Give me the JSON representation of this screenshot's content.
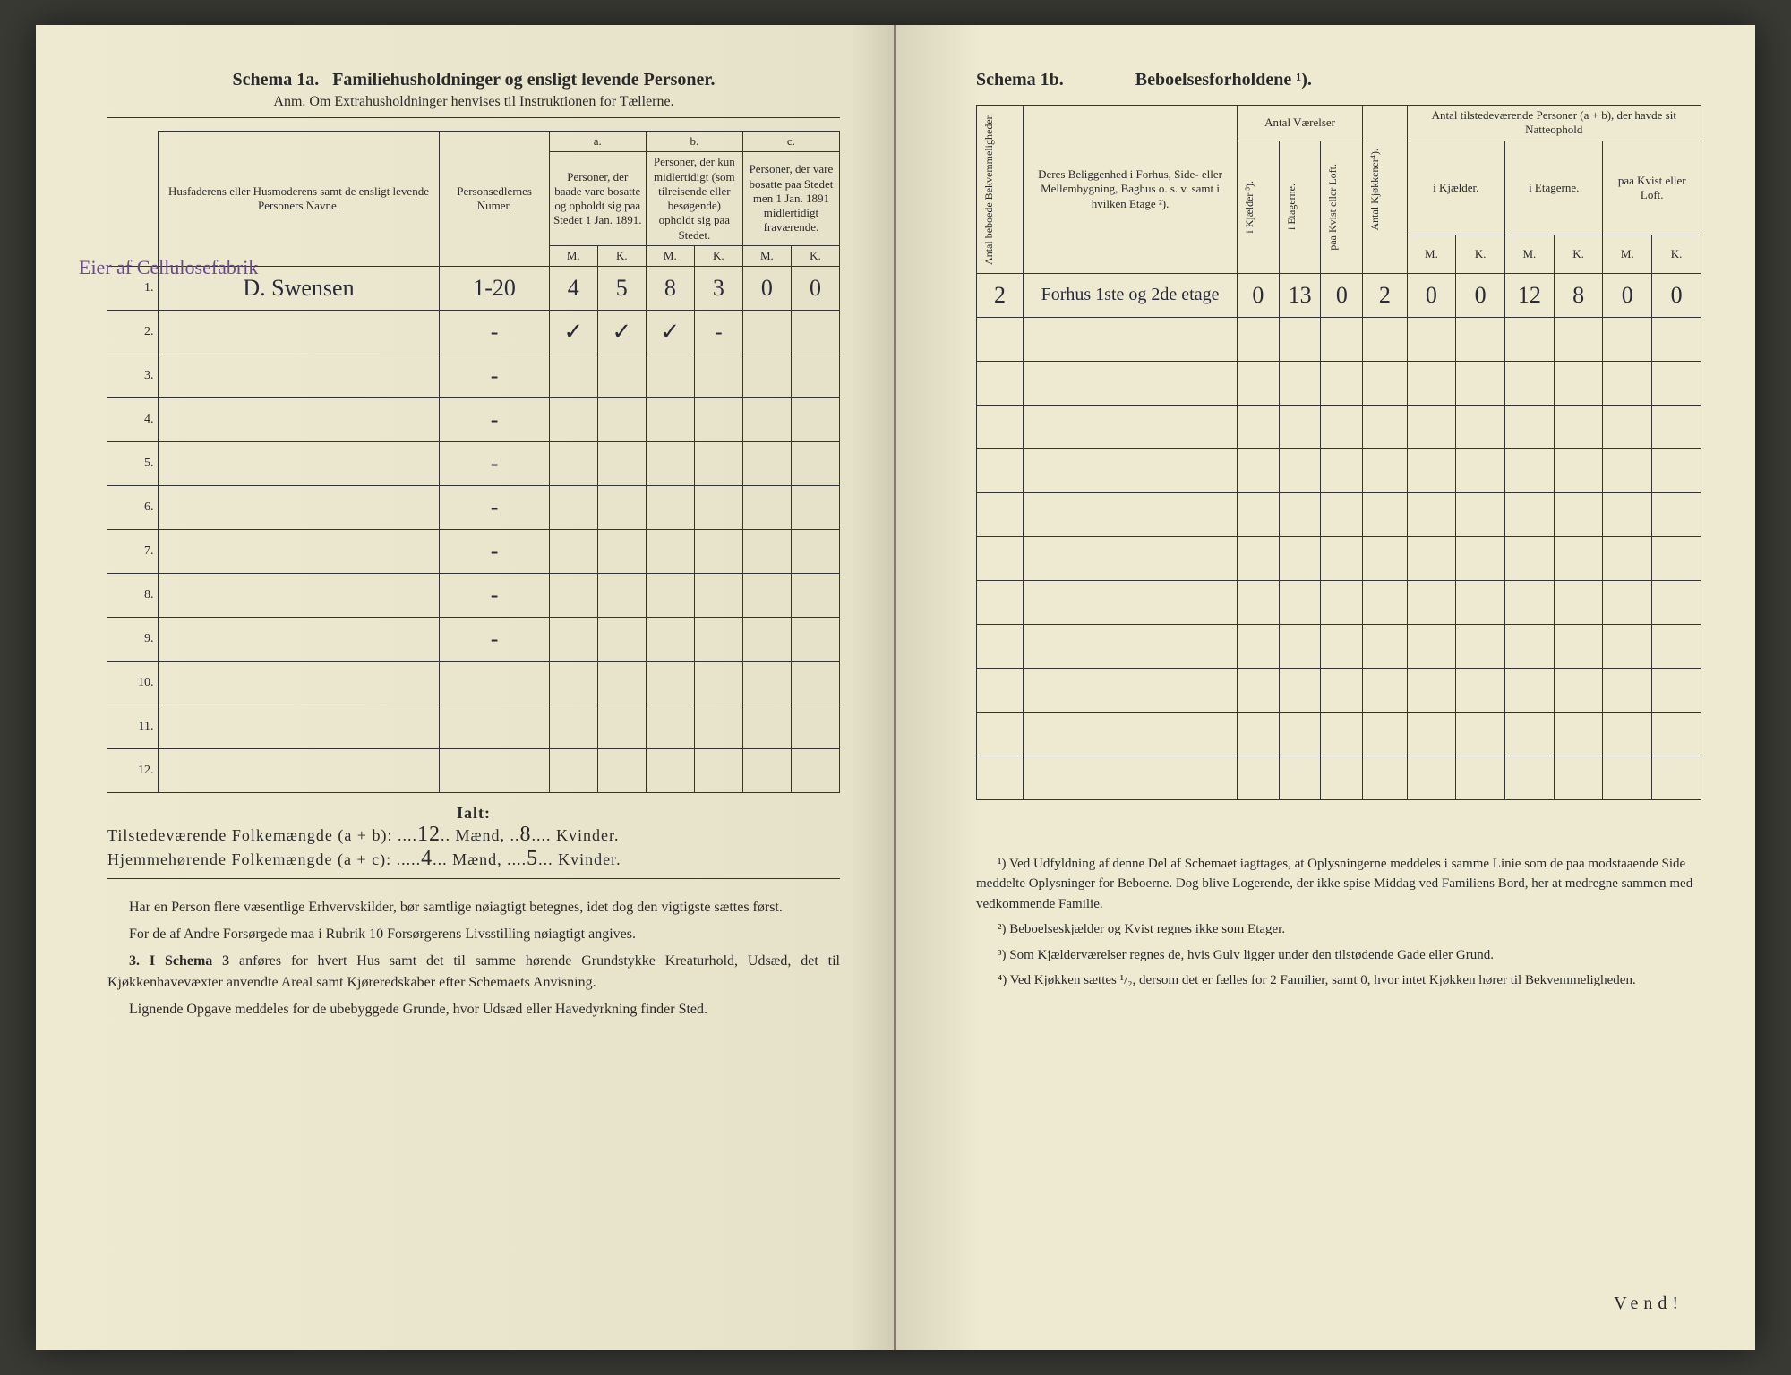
{
  "left": {
    "schema_label": "Schema 1a.",
    "schema_title": "Familiehusholdninger og ensligt levende Personer.",
    "anm": "Anm. Om Extrahusholdninger henvises til Instruktionen for Tællerne.",
    "header_names": "Husfaderens eller Husmoderens samt de ensligt levende Personers Navne.",
    "header_numer": "Personsedlernes Numer.",
    "col_a_label": "a.",
    "col_a_text": "Personer, der baade vare bosatte og opholdt sig paa Stedet 1 Jan. 1891.",
    "col_b_label": "b.",
    "col_b_text": "Personer, der kun midlertidigt (som tilreisende eller besøgende) opholdt sig paa Stedet.",
    "col_c_label": "c.",
    "col_c_text": "Personer, der vare bosatte paa Stedet men 1 Jan. 1891 midlertidigt fraværende.",
    "M": "M.",
    "K": "K.",
    "margin_note": "Eier af Cellulosefabrik",
    "rows": [
      {
        "n": "1.",
        "name": "D. Swensen",
        "num": "1-20",
        "aM": "4",
        "aK": "5",
        "bM": "8",
        "bK": "3",
        "cM": "0",
        "cK": "0"
      },
      {
        "n": "2.",
        "name": "",
        "num": "-",
        "aM": "✓",
        "aK": "✓",
        "bM": "✓",
        "bK": "-",
        "cM": "",
        "cK": ""
      },
      {
        "n": "3.",
        "name": "",
        "num": "-",
        "aM": "",
        "aK": "",
        "bM": "",
        "bK": "",
        "cM": "",
        "cK": ""
      },
      {
        "n": "4.",
        "name": "",
        "num": "-",
        "aM": "",
        "aK": "",
        "bM": "",
        "bK": "",
        "cM": "",
        "cK": ""
      },
      {
        "n": "5.",
        "name": "",
        "num": "-",
        "aM": "",
        "aK": "",
        "bM": "",
        "bK": "",
        "cM": "",
        "cK": ""
      },
      {
        "n": "6.",
        "name": "",
        "num": "-",
        "aM": "",
        "aK": "",
        "bM": "",
        "bK": "",
        "cM": "",
        "cK": ""
      },
      {
        "n": "7.",
        "name": "",
        "num": "-",
        "aM": "",
        "aK": "",
        "bM": "",
        "bK": "",
        "cM": "",
        "cK": ""
      },
      {
        "n": "8.",
        "name": "",
        "num": "-",
        "aM": "",
        "aK": "",
        "bM": "",
        "bK": "",
        "cM": "",
        "cK": ""
      },
      {
        "n": "9.",
        "name": "",
        "num": "-",
        "aM": "",
        "aK": "",
        "bM": "",
        "bK": "",
        "cM": "",
        "cK": ""
      },
      {
        "n": "10.",
        "name": "",
        "num": "",
        "aM": "",
        "aK": "",
        "bM": "",
        "bK": "",
        "cM": "",
        "cK": ""
      },
      {
        "n": "11.",
        "name": "",
        "num": "",
        "aM": "",
        "aK": "",
        "bM": "",
        "bK": "",
        "cM": "",
        "cK": ""
      },
      {
        "n": "12.",
        "name": "",
        "num": "",
        "aM": "",
        "aK": "",
        "bM": "",
        "bK": "",
        "cM": "",
        "cK": ""
      }
    ],
    "ialt": "Ialt:",
    "tot1_label": "Tilstedeværende Folkemængde (a + b):",
    "tot1_m": "12",
    "tot1_k": "8",
    "tot2_label": "Hjemmehørende Folkemængde (a + c):",
    "tot2_m": "4",
    "tot2_k": "5",
    "maend": "Mænd,",
    "kvinder": "Kvinder.",
    "para1": "Har en Person flere væsentlige Erhvervskilder, bør samtlige nøiagtigt betegnes, idet dog den vigtigste sættes først.",
    "para2": "For de af Andre Forsørgede maa i Rubrik 10 Forsørgerens Livsstilling nøiagtigt angives.",
    "para3_label": "3. I Schema 3",
    "para3": "anføres for hvert Hus samt det til samme hørende Grundstykke Kreaturhold, Udsæd, det til Kjøkkenhavevæxter anvendte Areal samt Kjøreredskaber efter Schemaets Anvisning.",
    "para4": "Lignende Opgave meddeles for de ubebyggede Grunde, hvor Udsæd eller Havedyrkning finder Sted."
  },
  "right": {
    "schema_label": "Schema 1b.",
    "schema_title": "Beboelsesforholdene ¹).",
    "h_antal_bekv": "Antal beboede Bekvemmeligheder.",
    "h_belig": "Deres Beliggenhed i Forhus, Side- eller Mellembygning, Baghus o. s. v. samt i hvilken Etage ²).",
    "h_vaer": "Antal Værelser",
    "h_kjokk": "Antal Kjøkkener⁴).",
    "h_tilst": "Antal tilstedeværende Personer (a + b), der havde sit Natteophold",
    "sub_kjaelder": "i Kjælder.",
    "sub_etagerne": "i Etagerne.",
    "sub_kvist": "paa Kvist eller Loft.",
    "v_kjaelder": "i Kjælder ³).",
    "v_etagerne": "i Etagerne.",
    "v_kvist": "paa Kvist eller Loft.",
    "M": "M.",
    "K": "K.",
    "row": {
      "bekv": "2",
      "belig": "Forhus 1ste og 2de etage",
      "vk": "0",
      "ve": "13",
      "vkv": "0",
      "kjok": "2",
      "km": "0",
      "kk": "0",
      "em": "12",
      "ek": "8",
      "lm": "0",
      "lk": "0"
    },
    "fn1": "¹) Ved Udfyldning af denne Del af Schemaet iagttages, at Oplysningerne meddeles i samme Linie som de paa modstaaende Side meddelte Oplysninger for Beboerne. Dog blive Logerende, der ikke spise Middag ved Familiens Bord, her at medregne sammen med vedkommende Familie.",
    "fn2": "²) Beboelseskjælder og Kvist regnes ikke som Etager.",
    "fn3": "³) Som Kjælderværelser regnes de, hvis Gulv ligger under den tilstødende Gade eller Grund.",
    "fn4": "⁴) Ved Kjøkken sættes ¹/₂, dersom det er fælles for 2 Familier, samt 0, hvor intet Kjøkken hører til Bekvemmeligheden.",
    "vend": "Vend!"
  }
}
